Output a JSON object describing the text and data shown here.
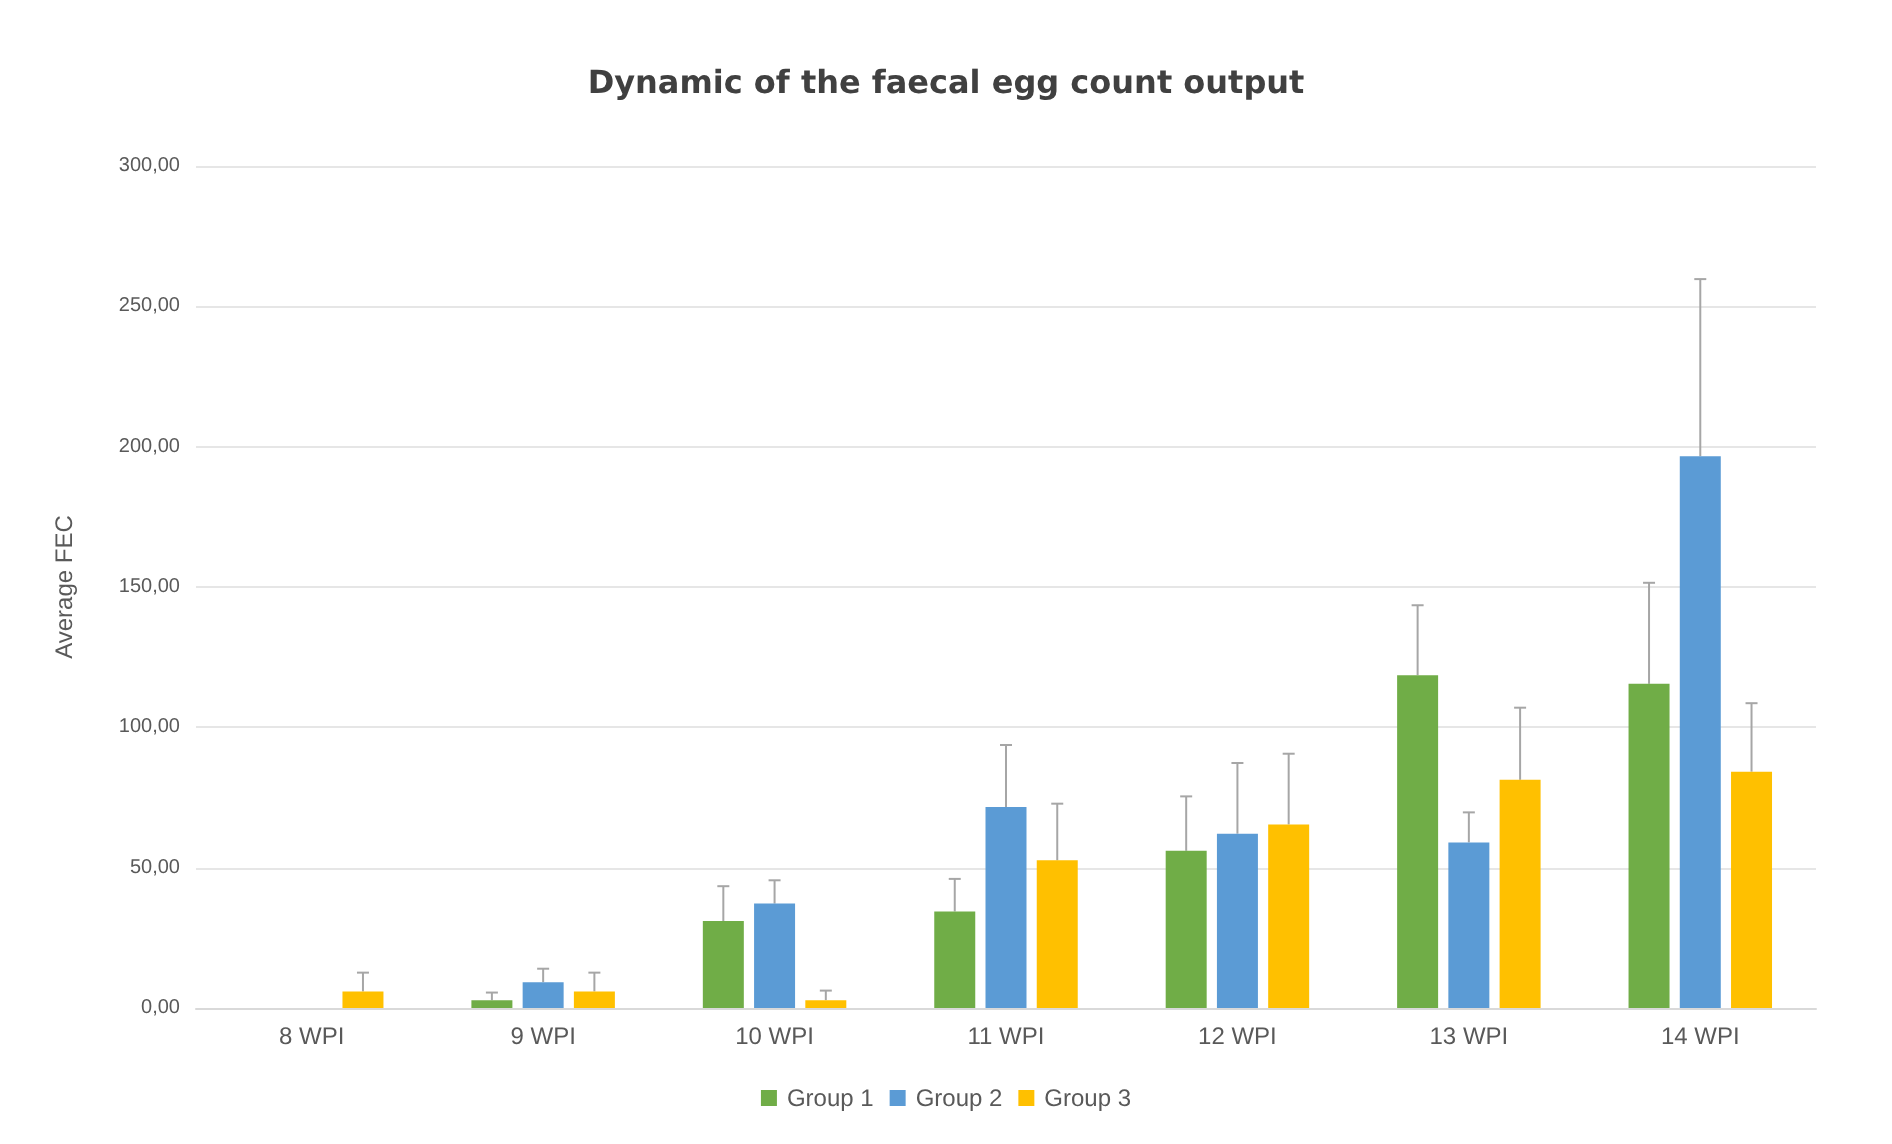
{
  "chart_data": {
    "type": "bar",
    "title": "Dynamic of the faecal egg count output",
    "ylabel": "Average FEC",
    "categories": [
      "8 WPI",
      "9 WPI",
      "10 WPI",
      "11 WPI",
      "12 WPI",
      "13 WPI",
      "14 WPI"
    ],
    "series": [
      {
        "name": "Group 1",
        "color": "#70ad47",
        "values": [
          null,
          2.8,
          31,
          34.4,
          56,
          118.6,
          115.5
        ],
        "errors": [
          null,
          [
            2.8,
            5.5
          ],
          [
            31,
            43.4
          ],
          [
            34.4,
            46
          ],
          [
            56,
            75.4
          ],
          [
            118.6,
            143.5
          ],
          [
            115.5,
            151.5
          ]
        ]
      },
      {
        "name": "Group 2",
        "color": "#5b9bd5",
        "values": [
          null,
          9.2,
          37.2,
          71.6,
          62.1,
          59,
          196.6
        ],
        "errors": [
          null,
          [
            9.2,
            14
          ],
          [
            37.2,
            45.5
          ],
          [
            71.6,
            93.7
          ],
          [
            62.1,
            87.3
          ],
          [
            59,
            69.7
          ],
          [
            196.6,
            259.7
          ]
        ]
      },
      {
        "name": "Group 3",
        "color": "#ffc000",
        "values": [
          5.9,
          5.9,
          2.8,
          52.6,
          65.4,
          81.3,
          84.2
        ],
        "errors": [
          [
            5.9,
            12.6
          ],
          [
            5.9,
            12.6
          ],
          [
            2.8,
            6.2
          ],
          [
            52.6,
            72.8
          ],
          [
            65.4,
            90.6
          ],
          [
            81.3,
            107
          ],
          [
            84.2,
            108.6
          ]
        ]
      }
    ],
    "ylim": [
      0,
      300
    ],
    "yticks": [
      {
        "value": 0,
        "label": "0,00"
      },
      {
        "value": 50,
        "label": "50,00"
      },
      {
        "value": 100,
        "label": "100,00"
      },
      {
        "value": 150,
        "label": "150,00"
      },
      {
        "value": 200,
        "label": "200,00"
      },
      {
        "value": 250,
        "label": "250,00"
      },
      {
        "value": 300,
        "label": "300,00"
      }
    ],
    "grid": "y",
    "legend": "bottom"
  }
}
